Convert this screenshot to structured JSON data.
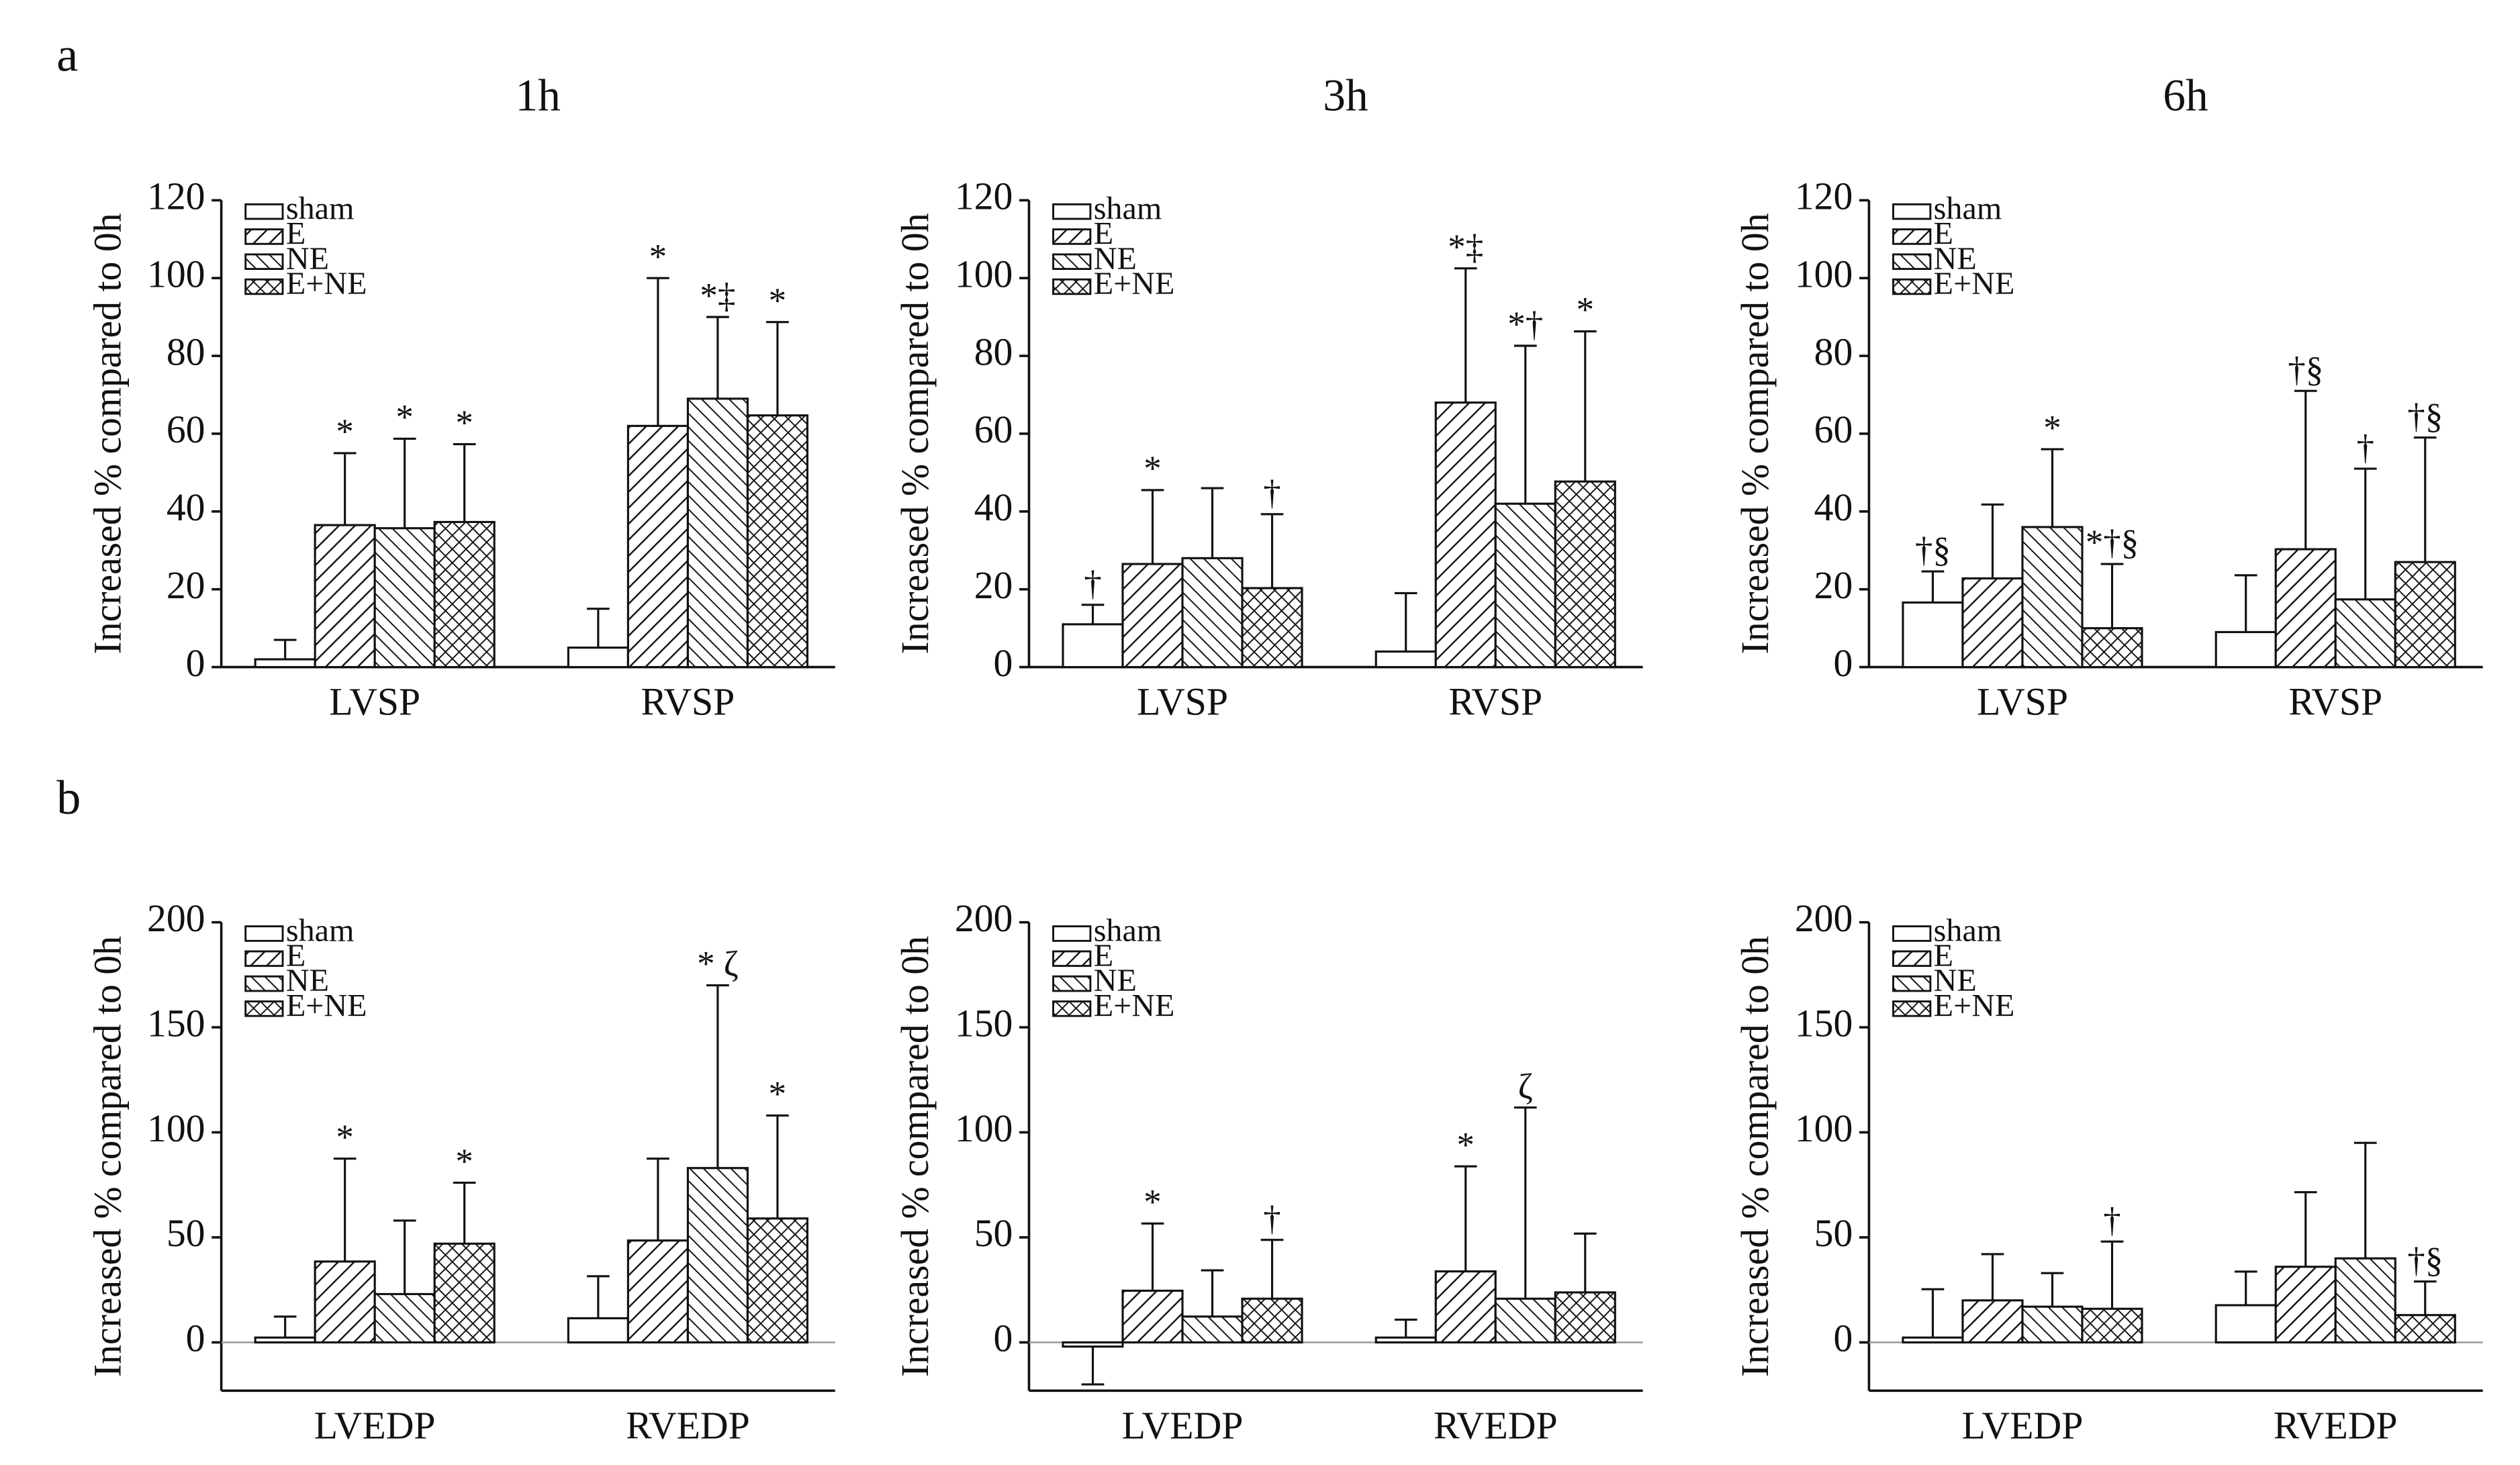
{
  "panel_labels": [
    "a",
    "b"
  ],
  "chart_data": [
    {
      "type": "bar",
      "title": "1h",
      "ylabel": "Increased % compared to 0h",
      "categories": [
        "LVSP",
        "RVSP"
      ],
      "ylim": [
        0,
        120
      ],
      "yticks": [
        0,
        20,
        40,
        60,
        80,
        100,
        120
      ],
      "legend": "upper left",
      "series": [
        {
          "name": "sham",
          "pattern": "none",
          "values": [
            2,
            5
          ],
          "errors": [
            5,
            10
          ],
          "annotations": [
            null,
            null
          ]
        },
        {
          "name": "E",
          "pattern": "forward",
          "values": [
            36.5,
            62
          ],
          "errors": [
            18.5,
            38
          ],
          "annotations": [
            "*",
            "*"
          ]
        },
        {
          "name": "NE",
          "pattern": "backward",
          "values": [
            35.7,
            69
          ],
          "errors": [
            23,
            21
          ],
          "annotations": [
            "*",
            "*‡"
          ]
        },
        {
          "name": "E+NE",
          "pattern": "cross",
          "values": [
            37.3,
            64.7
          ],
          "errors": [
            20,
            24
          ],
          "annotations": [
            "*",
            "*"
          ]
        }
      ]
    },
    {
      "type": "bar",
      "title": "3h",
      "ylabel": "Increased % compared to 0h",
      "categories": [
        "LVSP",
        "RVSP"
      ],
      "ylim": [
        0,
        120
      ],
      "yticks": [
        0,
        20,
        40,
        60,
        80,
        100,
        120
      ],
      "legend": "upper left",
      "series": [
        {
          "name": "sham",
          "pattern": "none",
          "values": [
            11,
            4
          ],
          "errors": [
            5,
            15
          ],
          "annotations": [
            "†",
            null
          ]
        },
        {
          "name": "E",
          "pattern": "forward",
          "values": [
            26.5,
            68
          ],
          "errors": [
            19,
            34.5
          ],
          "annotations": [
            "*",
            "*‡"
          ]
        },
        {
          "name": "NE",
          "pattern": "backward",
          "values": [
            28,
            42
          ],
          "errors": [
            18,
            40.6
          ],
          "annotations": [
            null,
            "*†"
          ]
        },
        {
          "name": "E+NE",
          "pattern": "cross",
          "values": [
            20.3,
            47.7
          ],
          "errors": [
            19,
            38.6
          ],
          "annotations": [
            "†",
            "*"
          ]
        }
      ]
    },
    {
      "type": "bar",
      "title": "6h",
      "ylabel": "Increased % compared to 0h",
      "categories": [
        "LVSP",
        "RVSP"
      ],
      "ylim": [
        0,
        120
      ],
      "yticks": [
        0,
        20,
        40,
        60,
        80,
        100,
        120
      ],
      "legend": "upper left",
      "series": [
        {
          "name": "sham",
          "pattern": "none",
          "values": [
            16.6,
            9
          ],
          "errors": [
            8,
            14.6
          ],
          "annotations": [
            "†§",
            null
          ]
        },
        {
          "name": "E",
          "pattern": "forward",
          "values": [
            22.8,
            30.3
          ],
          "errors": [
            19,
            40.7
          ],
          "annotations": [
            null,
            "†§"
          ]
        },
        {
          "name": "NE",
          "pattern": "backward",
          "values": [
            36,
            17.4
          ],
          "errors": [
            20,
            33.6
          ],
          "annotations": [
            "*",
            "†"
          ]
        },
        {
          "name": "E+NE",
          "pattern": "cross",
          "values": [
            10,
            27
          ],
          "errors": [
            16.5,
            32
          ],
          "annotations": [
            "*†§",
            "†§"
          ]
        }
      ]
    },
    {
      "type": "bar",
      "ylabel": "Increased % compared to 0h",
      "categories": [
        "LVEDP",
        "RVEDP"
      ],
      "ylim": [
        -23,
        200
      ],
      "yticks": [
        0,
        50,
        100,
        150,
        200
      ],
      "legend": "upper left",
      "series": [
        {
          "name": "sham",
          "pattern": "none",
          "values": [
            2.3,
            11.5
          ],
          "errors": [
            10,
            20
          ],
          "annotations": [
            null,
            null
          ]
        },
        {
          "name": "E",
          "pattern": "forward",
          "values": [
            38.5,
            48.5
          ],
          "errors": [
            49,
            39
          ],
          "annotations": [
            "*",
            null
          ]
        },
        {
          "name": "NE",
          "pattern": "backward",
          "values": [
            23,
            83
          ],
          "errors": [
            35,
            87
          ],
          "annotations": [
            null,
            "* ζ"
          ]
        },
        {
          "name": "E+NE",
          "pattern": "cross",
          "values": [
            47,
            59
          ],
          "errors": [
            29,
            49
          ],
          "annotations": [
            "*",
            "*"
          ]
        }
      ]
    },
    {
      "type": "bar",
      "ylabel": "Increased % compared to 0h",
      "categories": [
        "LVEDP",
        "RVEDP"
      ],
      "ylim": [
        -23,
        200
      ],
      "yticks": [
        0,
        50,
        100,
        150,
        200
      ],
      "legend": "upper left",
      "series": [
        {
          "name": "sham",
          "pattern": "none",
          "values": [
            -2,
            2.3
          ],
          "errors": [
            18,
            8.5
          ],
          "annotations": [
            null,
            null
          ]
        },
        {
          "name": "E",
          "pattern": "forward",
          "values": [
            24.6,
            33.8
          ],
          "errors": [
            32,
            50
          ],
          "annotations": [
            "*",
            "*"
          ]
        },
        {
          "name": "NE",
          "pattern": "backward",
          "values": [
            12.3,
            20.8
          ],
          "errors": [
            22,
            91
          ],
          "annotations": [
            null,
            "ζ"
          ]
        },
        {
          "name": "E+NE",
          "pattern": "cross",
          "values": [
            20.8,
            23.8
          ],
          "errors": [
            28,
            28
          ],
          "annotations": [
            "†",
            null
          ]
        }
      ]
    },
    {
      "type": "bar",
      "ylabel": "Increased % compared to 0h",
      "categories": [
        "LVEDP",
        "RVEDP"
      ],
      "ylim": [
        -23,
        200
      ],
      "yticks": [
        0,
        50,
        100,
        150,
        200
      ],
      "legend": "upper left",
      "series": [
        {
          "name": "sham",
          "pattern": "none",
          "values": [
            2.3,
            17.7
          ],
          "errors": [
            23,
            16
          ],
          "annotations": [
            null,
            null
          ]
        },
        {
          "name": "E",
          "pattern": "forward",
          "values": [
            20,
            36
          ],
          "errors": [
            22,
            35.5
          ],
          "annotations": [
            null,
            null
          ]
        },
        {
          "name": "NE",
          "pattern": "backward",
          "values": [
            17,
            40
          ],
          "errors": [
            16,
            55
          ],
          "annotations": [
            null,
            null
          ]
        },
        {
          "name": "E+NE",
          "pattern": "cross",
          "values": [
            16,
            13
          ],
          "errors": [
            32,
            16
          ],
          "annotations": [
            "†",
            "†§"
          ]
        }
      ]
    }
  ]
}
